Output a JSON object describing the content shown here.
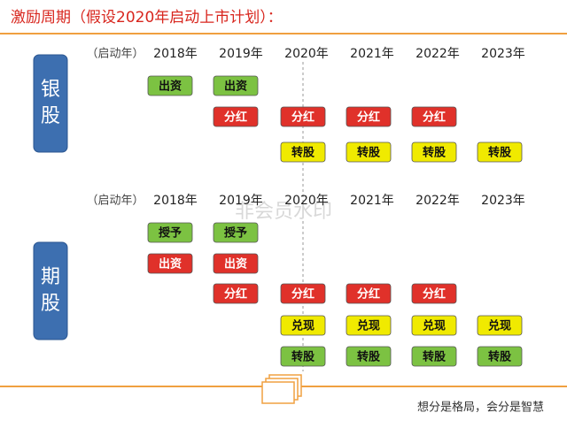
{
  "header": {
    "title": "激励周期（假设2020年启动上市计划）："
  },
  "sections": [
    {
      "label": "银股",
      "year_prefix": "（启动年）",
      "years": [
        "2018年",
        "2019年",
        "2020年",
        "2021年",
        "2022年",
        "2023年"
      ],
      "rows": [
        {
          "color": "#7cc242",
          "cells": [
            "出资",
            "出资",
            null,
            null,
            null,
            null
          ]
        },
        {
          "color": "#e0312a",
          "cells": [
            null,
            "分红",
            "分红",
            "分红",
            "分红",
            null
          ]
        },
        {
          "color": "#f0ea00",
          "cells": [
            null,
            null,
            "转股",
            "转股",
            "转股",
            "转股"
          ]
        }
      ]
    },
    {
      "label": "期股",
      "year_prefix": "（启动年）",
      "years": [
        "2018年",
        "2019年",
        "2020年",
        "2021年",
        "2022年",
        "2023年"
      ],
      "rows": [
        {
          "color": "#7cc242",
          "cells": [
            "授予",
            "授予",
            null,
            null,
            null,
            null
          ]
        },
        {
          "color": "#e0312a",
          "cells": [
            "出资",
            "出资",
            null,
            null,
            null,
            null
          ]
        },
        {
          "color": "#e0312a",
          "cells": [
            null,
            "分红",
            "分红",
            "分红",
            "分红",
            null
          ]
        },
        {
          "color": "#f0ea00",
          "cells": [
            null,
            null,
            "兑现",
            "兑现",
            "兑现",
            "兑现"
          ]
        },
        {
          "color": "#7cc242",
          "cells": [
            null,
            null,
            "转股",
            "转股",
            "转股",
            "转股"
          ]
        }
      ]
    }
  ],
  "watermark": "非会员水印",
  "footer": {
    "slogan": "想分是格局，会分是智慧"
  }
}
